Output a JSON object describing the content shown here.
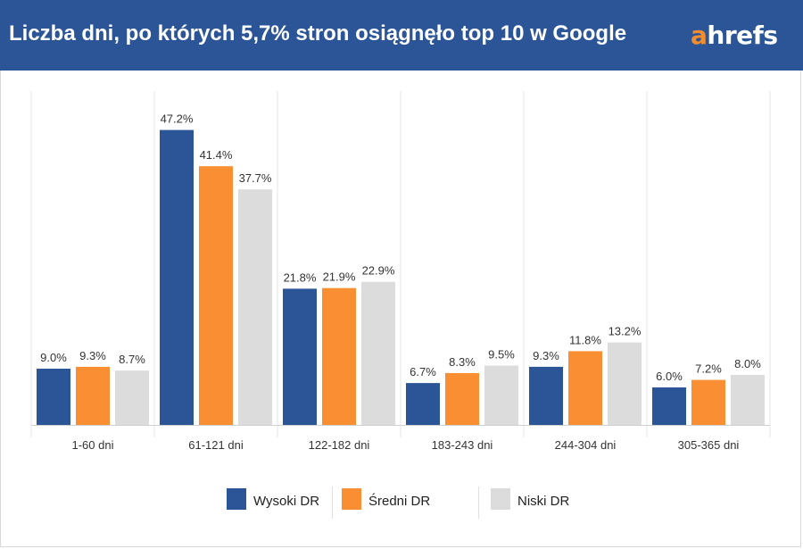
{
  "header": {
    "title": "Liczba dni, po których 5,7% stron osiągnęło top 10 w Google",
    "logo_first": "a",
    "logo_rest": "hrefs"
  },
  "colors": {
    "header_bg": "#2b5597",
    "logo_accent": "#f38d2e"
  },
  "chart_data": {
    "type": "bar",
    "categories": [
      "1-60  dni",
      "61-121  dni",
      "122-182  dni",
      "183-243  dni",
      "244-304  dni",
      "305-365  dni"
    ],
    "series": [
      {
        "name": "Wysoki DR",
        "color": "#2b5597",
        "values": [
          9.0,
          47.2,
          21.8,
          6.7,
          9.3,
          6.0
        ],
        "labels": [
          "9.0%",
          "47.2%",
          "21.8%",
          "6.7%",
          "9.3%",
          "6.0%"
        ]
      },
      {
        "name": "Średni DR",
        "color": "#f98e32",
        "values": [
          9.3,
          41.4,
          21.9,
          8.3,
          11.8,
          7.2
        ],
        "labels": [
          "9.3%",
          "41.4%",
          "21.9%",
          "8.3%",
          "11.8%",
          "7.2%"
        ]
      },
      {
        "name": "Niski DR",
        "color": "#dcdcdc",
        "values": [
          8.7,
          37.7,
          22.9,
          9.5,
          13.2,
          8.0
        ],
        "labels": [
          "8.7%",
          "37.7%",
          "22.9%",
          "9.5%",
          "13.2%",
          "8.0%"
        ]
      }
    ],
    "ylim": [
      0,
      50
    ],
    "grid": false,
    "legend_position": "bottom"
  }
}
